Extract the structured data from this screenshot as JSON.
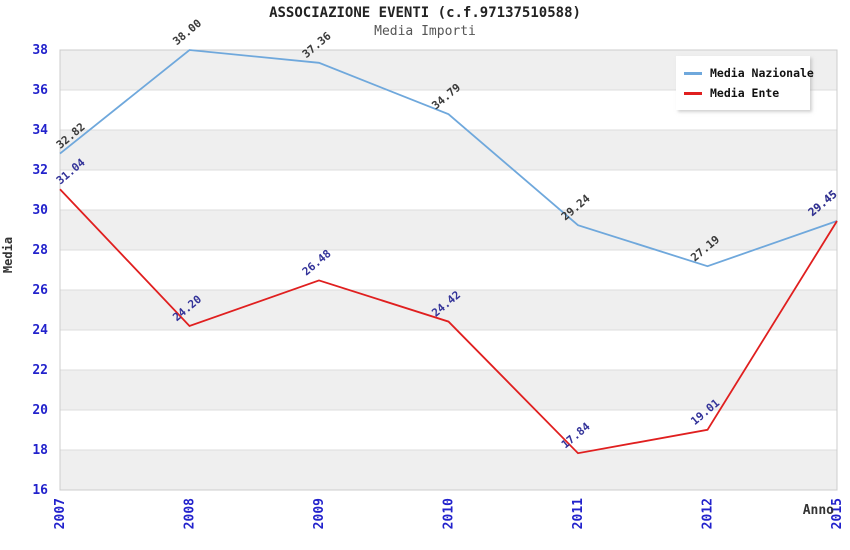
{
  "title": "ASSOCIAZIONE EVENTI (c.f.97137510588)",
  "subtitle": "Media Importi",
  "axes": {
    "x_title": "Anno",
    "y_title": "Media"
  },
  "colors": {
    "tick_label": "#2222cc",
    "band": "#efefef",
    "gridline": "#dddddd",
    "plot_border": "#cccccc",
    "background": "#ffffff",
    "nazionale_line": "#6fa8dc",
    "ente_line": "#e01f1f",
    "nazionale_point_label": "#3a3a3a",
    "ente_point_label": "#333399"
  },
  "chart_data": {
    "type": "line",
    "categories": [
      "2007",
      "2008",
      "2009",
      "2010",
      "2011",
      "2012",
      "2015"
    ],
    "series": [
      {
        "name": "Media Nazionale",
        "color": "#6fa8dc",
        "label_color": "#3a3a3a",
        "values": [
          32.82,
          38.0,
          37.36,
          34.79,
          29.24,
          27.19,
          29.45
        ]
      },
      {
        "name": "Media Ente",
        "color": "#e01f1f",
        "label_color": "#333399",
        "values": [
          31.04,
          24.2,
          26.48,
          24.42,
          17.84,
          19.01,
          29.45
        ]
      }
    ],
    "title": "ASSOCIAZIONE EVENTI (c.f.97137510588)",
    "subtitle": "Media Importi",
    "xlabel": "Anno",
    "ylabel": "Media",
    "ylim": [
      16,
      38
    ],
    "ytick_step": 2,
    "grid": "horizontal-gridlines-with-alternating-bands",
    "legend_position": "top-right",
    "point_labels": "values shown with two decimals, rotated -40deg"
  }
}
